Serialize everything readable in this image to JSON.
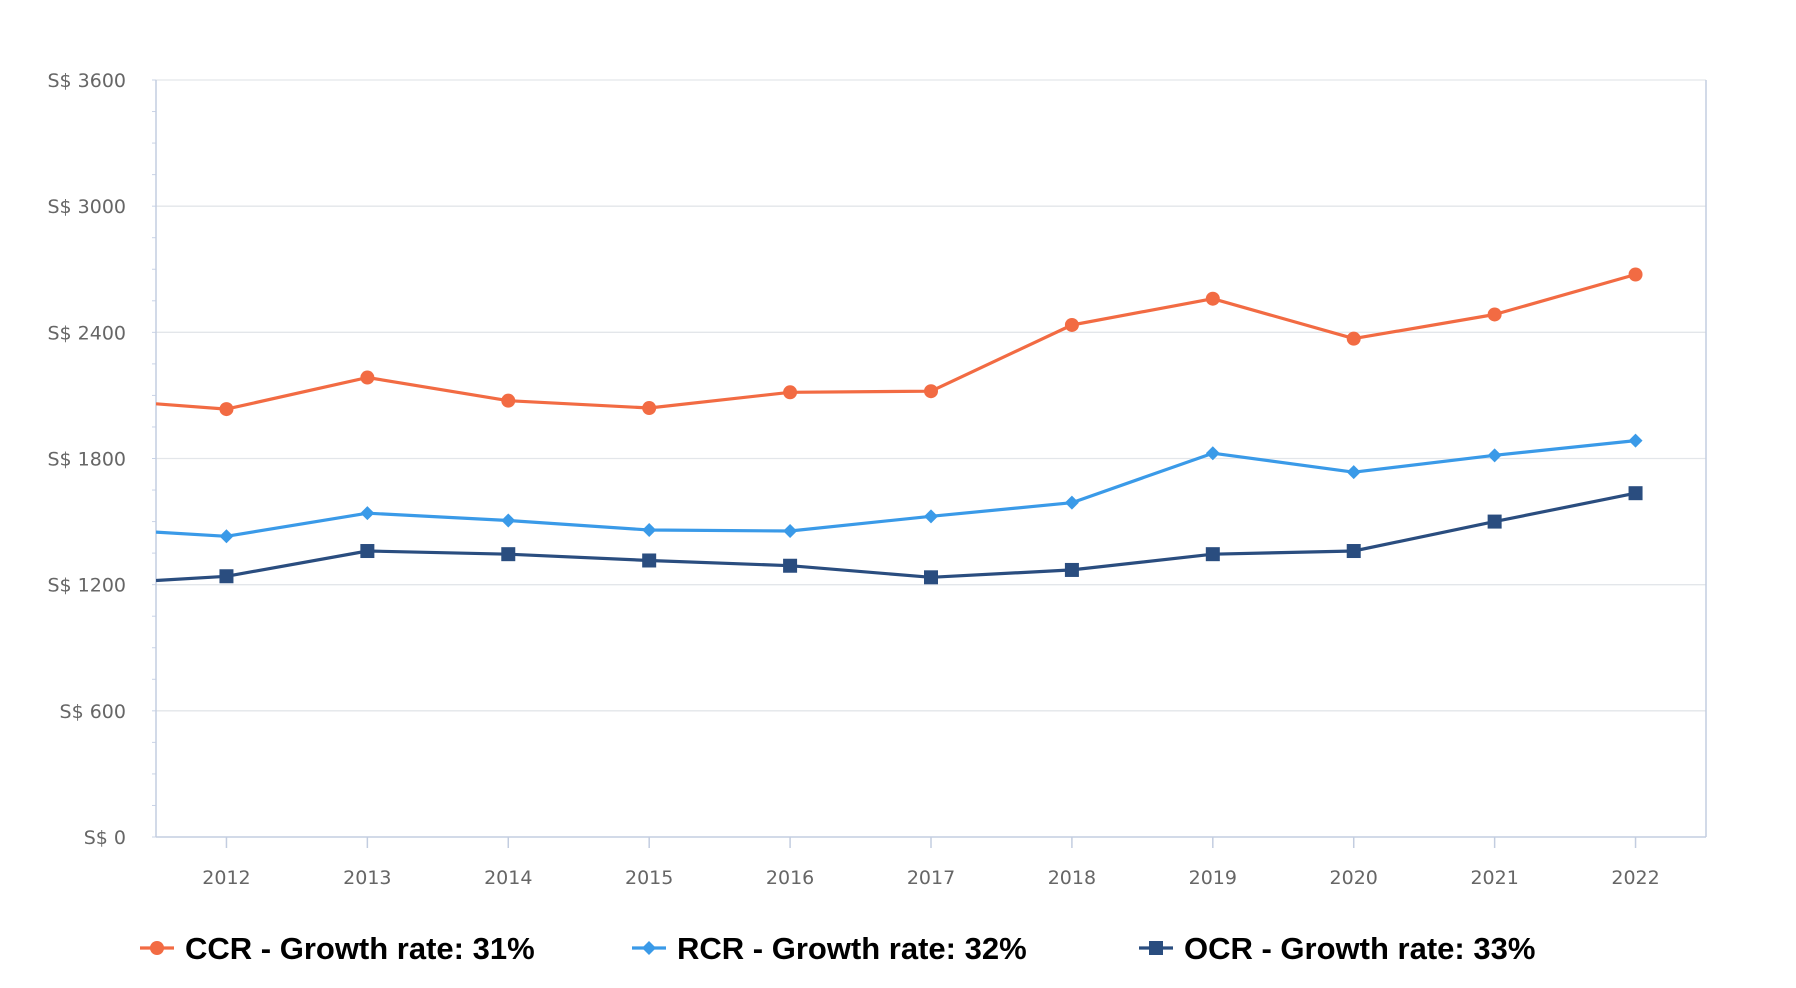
{
  "chart_data": {
    "type": "line",
    "title": "",
    "xlabel": "",
    "ylabel": "",
    "categories": [
      "2012",
      "2013",
      "2014",
      "2015",
      "2016",
      "2017",
      "2018",
      "2019",
      "2020",
      "2021",
      "2022"
    ],
    "x_range": [
      2011.5,
      2022.5
    ],
    "ylim": [
      0,
      3600
    ],
    "y_ticks": [
      0,
      600,
      1200,
      1800,
      2400,
      3000,
      3600
    ],
    "y_tick_labels": [
      "S$ 0",
      "S$ 600",
      "S$ 1200",
      "S$ 1800",
      "S$ 2400",
      "S$ 3000",
      "S$ 3600"
    ],
    "grid": true,
    "legend_position": "bottom",
    "series": [
      {
        "name": "CCR - Growth rate: 31%",
        "color": "#f26b43",
        "marker": "circle",
        "start_value": 2060,
        "values": [
          2035,
          2185,
          2075,
          2040,
          2115,
          2120,
          2435,
          2560,
          2370,
          2485,
          2675
        ]
      },
      {
        "name": "RCR - Growth rate: 32%",
        "color": "#3a9ae8",
        "marker": "diamond",
        "start_value": 1450,
        "values": [
          1430,
          1540,
          1505,
          1460,
          1455,
          1525,
          1590,
          1825,
          1735,
          1815,
          1885
        ]
      },
      {
        "name": "OCR - Growth rate: 33%",
        "color": "#2a4d7f",
        "marker": "square",
        "start_value": 1220,
        "values": [
          1240,
          1360,
          1345,
          1315,
          1290,
          1235,
          1270,
          1345,
          1360,
          1500,
          1635
        ]
      }
    ]
  }
}
